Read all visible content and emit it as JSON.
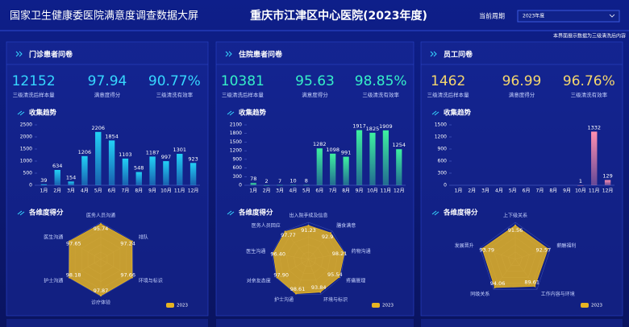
{
  "header": {
    "title": "国家卫生健康委医院满意度调查数据大屏",
    "hospital": "重庆市江津区中心医院(2023年度)",
    "period_label": "当前周期",
    "period": "2023年度",
    "note": "本界面展示数据为三级清洗后内容"
  },
  "panels": [
    {
      "title": "门诊患者问卷",
      "kpis": [
        {
          "value": "12152",
          "label": "三级清洗后样本量"
        },
        {
          "value": "97.94",
          "label": "满意度得分"
        },
        {
          "value": "90.77%",
          "label": "三级清洗有效率"
        }
      ],
      "trend_title": "收集趋势",
      "radar_title": "各维度得分"
    },
    {
      "title": "住院患者问卷",
      "kpis": [
        {
          "value": "10381",
          "label": "三级清洗后样本量"
        },
        {
          "value": "95.63",
          "label": "满意度得分"
        },
        {
          "value": "98.85%",
          "label": "三级清洗有效率"
        }
      ],
      "trend_title": "收集趋势",
      "radar_title": "各维度得分"
    },
    {
      "title": "员工问卷",
      "kpis": [
        {
          "value": "1462",
          "label": "三级清洗后样本量"
        },
        {
          "value": "96.99",
          "label": "满意度得分"
        },
        {
          "value": "96.76%",
          "label": "三级清洗有效率"
        }
      ],
      "trend_title": "收集趋势",
      "radar_title": "各维度得分"
    }
  ],
  "chart_data": [
    {
      "type": "bar",
      "categories": [
        "1月",
        "2月",
        "3月",
        "4月",
        "5月",
        "6月",
        "7月",
        "8月",
        "9月",
        "10月",
        "11月",
        "12月"
      ],
      "values": [
        39,
        634,
        154,
        1206,
        2206,
        1854,
        1103,
        548,
        1187,
        997,
        1301,
        923
      ],
      "color": "#22d0f5",
      "ylim": [
        0,
        2500
      ],
      "yticks": [
        0,
        500,
        1000,
        1500,
        2000,
        2500
      ]
    },
    {
      "type": "bar",
      "categories": [
        "1月",
        "2月",
        "3月",
        "4月",
        "5月",
        "6月",
        "7月",
        "8月",
        "9月",
        "10月",
        "11月",
        "12月"
      ],
      "values": [
        78,
        2,
        7,
        10,
        8,
        1282,
        1098,
        991,
        1917,
        1825,
        1909,
        1254
      ],
      "color": "#3ef0a0",
      "ylim": [
        0,
        2100
      ],
      "yticks": [
        0,
        300,
        600,
        900,
        1200,
        1500,
        1800,
        2100
      ]
    },
    {
      "type": "bar",
      "categories": [
        "1月",
        "2月",
        "3月",
        "4月",
        "5月",
        "6月",
        "7月",
        "8月",
        "9月",
        "10月",
        "11月",
        "12月"
      ],
      "values": [
        null,
        null,
        null,
        null,
        null,
        null,
        null,
        null,
        null,
        1,
        1332,
        129
      ],
      "color": "#ff8fb0",
      "ylim": [
        0,
        1500
      ],
      "yticks": [
        0,
        300,
        600,
        900,
        1200,
        1500
      ]
    },
    {
      "type": "radar",
      "categories": [
        "医务人员沟通",
        "排队",
        "环境与标识",
        "诊疗体验",
        "护士沟通",
        "医生沟通"
      ],
      "rlim": [
        0,
        100
      ],
      "series": [
        {
          "name": "2023",
          "color": "#e6b422",
          "values": [
            95.74,
            97.24,
            97.66,
            97.87,
            98.18,
            97.65
          ]
        }
      ]
    },
    {
      "type": "radar",
      "categories": [
        "出入院手续及信息",
        "膳食满意",
        "药物沟通",
        "疼痛管理",
        "环境与标识",
        "护士沟通",
        "对亲友态度",
        "医生沟通",
        "医务人员回应"
      ],
      "rlim": [
        0,
        100
      ],
      "series": [
        {
          "name": "2023",
          "color": "#e6b422",
          "values": [
            91.23,
            92.9,
            98.21,
            95.54,
            93.84,
            98.61,
            97.9,
            96.4,
            97.77
          ],
          "value_labels": [
            "91.23",
            "92.9",
            "98.21",
            "95.54",
            "93.84",
            "98.61",
            "97.90",
            "96.40",
            "97.77"
          ]
        }
      ]
    },
    {
      "type": "radar",
      "categories": [
        "上下级关系",
        "薪酬福利",
        "工作内容与环境",
        "同级关系",
        "发展晋升"
      ],
      "rlim": [
        0,
        100
      ],
      "series": [
        {
          "name": "2023",
          "color": "#e6b422",
          "values": [
            91.56,
            92.57,
            89.61,
            94.06,
            93.79
          ]
        }
      ]
    }
  ]
}
